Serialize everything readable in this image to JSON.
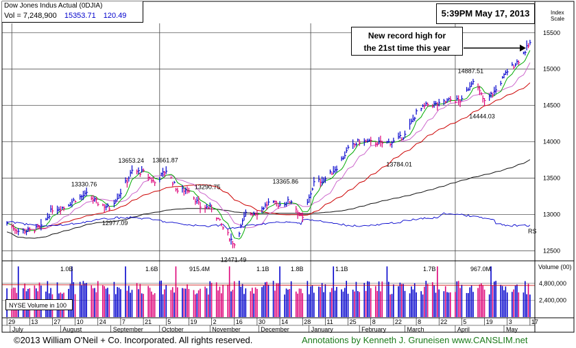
{
  "header": {
    "title": "Dow Jones Indus Actual  (0DJIA)",
    "vol_label": "Vol = 7,248,900",
    "price": "15353.71",
    "change": "120.49",
    "timestamp": "5:39PM May 17, 2013",
    "index_scale_1": "Index",
    "index_scale_2": "Scale"
  },
  "annotation": {
    "line1": "New record high for",
    "line2": "the 21st time this year"
  },
  "footer": {
    "copyright": "©2013 William O'Neil + Co. Incorporated. All rights reserved.",
    "annotations": "Annotations by Kenneth J. Gruneisen www.CANSLIM.net"
  },
  "chart_data": {
    "type": "line",
    "title": "Dow Jones Indus Actual  (0DJIA)",
    "price_axis": {
      "ticks": [
        12500,
        13000,
        13500,
        14000,
        14500,
        15000,
        15500
      ],
      "range": [
        12380,
        15630
      ]
    },
    "volume_axis": {
      "ticks": [
        "4,800,000",
        "2,400,000"
      ],
      "label": "Volume (00)",
      "range": [
        0,
        7800000
      ]
    },
    "x_axis": {
      "months": [
        "July",
        "August",
        "September",
        "October",
        "November",
        "December",
        "January",
        "February",
        "March",
        "April",
        "May"
      ],
      "day_ticks": [
        "29",
        "13",
        "27",
        "10",
        "24",
        "7",
        "21",
        "5",
        "19",
        "2",
        "16",
        "30",
        "14",
        "28",
        "11",
        "25",
        "8",
        "22",
        "8",
        "22",
        "5",
        "19",
        "3",
        "17"
      ]
    },
    "price_annotations": [
      {
        "text": "13330.76",
        "date": "2012-08-16",
        "value": 13330.76
      },
      {
        "text": "12977.09",
        "date": "2012-09-04",
        "value": 12977.09
      },
      {
        "text": "13653.24",
        "date": "2012-09-14",
        "value": 13653.24
      },
      {
        "text": "13661.87",
        "date": "2012-10-05",
        "value": 13661.87
      },
      {
        "text": "13290.75",
        "date": "2012-10-31",
        "value": 13290.75
      },
      {
        "text": "12471.49",
        "date": "2012-11-16",
        "value": 12471.49
      },
      {
        "text": "13365.86",
        "date": "2012-12-18",
        "value": 13365.86
      },
      {
        "text": "13784.01",
        "date": "2013-02-26",
        "value": 13784.01
      },
      {
        "text": "14887.51",
        "date": "2013-04-11",
        "value": 14887.51
      },
      {
        "text": "14444.03",
        "date": "2013-04-18",
        "value": 14444.03
      }
    ],
    "volume_annotations": [
      "1.0B",
      "1.6B",
      "915.4M",
      "1.1B",
      "1.8B",
      "1.1B",
      "1.7B",
      "967.0M"
    ],
    "volume_legend": "NYSE Volume in 100",
    "rs_label": "RS",
    "series": [
      {
        "name": "",
        "color": "#0000cc",
        "points": [
          [
            "2012-06-29",
            12880
          ],
          [
            "2012-07-06",
            12772
          ],
          [
            "2012-07-13",
            12777
          ],
          [
            "2012-07-20",
            12822
          ],
          [
            "2012-07-27",
            13075
          ],
          [
            "2012-08-03",
            13096
          ],
          [
            "2012-08-10",
            13207
          ],
          [
            "2012-08-17",
            13275
          ],
          [
            "2012-08-24",
            13157
          ],
          [
            "2012-08-31",
            13090
          ],
          [
            "2012-09-07",
            13306
          ],
          [
            "2012-09-14",
            13593
          ],
          [
            "2012-09-21",
            13579
          ],
          [
            "2012-09-28",
            13437
          ],
          [
            "2012-10-05",
            13610
          ],
          [
            "2012-10-12",
            13328
          ],
          [
            "2012-10-19",
            13343
          ],
          [
            "2012-10-26",
            13107
          ],
          [
            "2012-11-02",
            13093
          ],
          [
            "2012-11-09",
            12815
          ],
          [
            "2012-11-16",
            12588
          ],
          [
            "2012-11-23",
            13010
          ],
          [
            "2012-11-30",
            13025
          ],
          [
            "2012-12-07",
            13155
          ],
          [
            "2012-12-14",
            13135
          ],
          [
            "2012-12-21",
            13190
          ],
          [
            "2012-12-28",
            12938
          ],
          [
            "2013-01-04",
            13435
          ],
          [
            "2013-01-11",
            13488
          ],
          [
            "2013-01-18",
            13650
          ],
          [
            "2013-01-25",
            13896
          ],
          [
            "2013-02-01",
            14009
          ],
          [
            "2013-02-08",
            13993
          ],
          [
            "2013-02-15",
            13981
          ],
          [
            "2013-02-22",
            14000
          ],
          [
            "2013-03-01",
            14090
          ],
          [
            "2013-03-08",
            14397
          ],
          [
            "2013-03-15",
            14514
          ],
          [
            "2013-03-22",
            14512
          ],
          [
            "2013-03-29",
            14578
          ],
          [
            "2013-04-05",
            14565
          ],
          [
            "2013-04-12",
            14865
          ],
          [
            "2013-04-19",
            14547
          ],
          [
            "2013-04-26",
            14712
          ],
          [
            "2013-05-03",
            14974
          ],
          [
            "2013-05-10",
            15118
          ],
          [
            "2013-05-17",
            15354
          ]
        ]
      }
    ]
  }
}
